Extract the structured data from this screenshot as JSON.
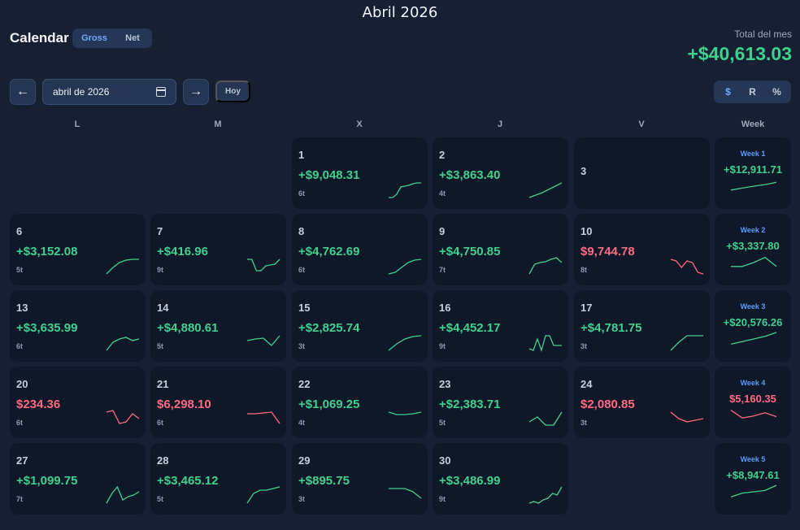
{
  "page_title": "Abril 2026",
  "header": {
    "title": "Calendar",
    "mode_options": [
      "Gross",
      "Net"
    ],
    "active_mode": "Gross",
    "total_label": "Total del mes",
    "total_value": "+$40,613.03"
  },
  "controls": {
    "prev_label": "←",
    "next_label": "→",
    "date_value": "abril de 2026",
    "today_label": "Hoy",
    "unit_options": [
      "$",
      "R",
      "%"
    ],
    "active_unit": "$"
  },
  "colors": {
    "positive": "#43d08f",
    "negative": "#ff6b81",
    "accent": "#5d9cf5"
  },
  "weekdays": [
    "L",
    "M",
    "X",
    "J",
    "V",
    "Week"
  ],
  "weeks": [
    {
      "label": "Week 1",
      "value": "+$12,911.71",
      "sign": "pos",
      "spark": [
        0.2,
        0.35,
        0.5,
        0.62,
        0.8
      ],
      "days": [
        null,
        null,
        {
          "day": "1",
          "value": "+$9,048.31",
          "trades": "6t",
          "sign": "pos",
          "spark": [
            0.0,
            0.0,
            0.2,
            0.65,
            0.7,
            0.75,
            0.85,
            0.9,
            0.9
          ]
        },
        {
          "day": "2",
          "value": "+$3,863.40",
          "trades": "4t",
          "sign": "pos",
          "spark": [
            0.0,
            0.15,
            0.3,
            0.5,
            0.7,
            0.9
          ]
        },
        {
          "day": "3",
          "value": "",
          "trades": "",
          "sign": "none",
          "spark": []
        }
      ]
    },
    {
      "label": "Week 2",
      "value": "+$3,337.80",
      "sign": "pos",
      "spark": [
        0.2,
        0.2,
        0.5,
        0.9,
        0.2
      ],
      "days": [
        {
          "day": "6",
          "value": "+$3,152.08",
          "trades": "5t",
          "sign": "pos",
          "spark": [
            0.0,
            0.4,
            0.7,
            0.85,
            0.9,
            0.9
          ]
        },
        {
          "day": "7",
          "value": "+$416.96",
          "trades": "9t",
          "sign": "pos",
          "spark": [
            0.9,
            0.9,
            0.2,
            0.2,
            0.5,
            0.55,
            0.6,
            0.9
          ]
        },
        {
          "day": "8",
          "value": "+$4,762.69",
          "trades": "6t",
          "sign": "pos",
          "spark": [
            0.0,
            0.1,
            0.4,
            0.7,
            0.85,
            0.9
          ]
        },
        {
          "day": "9",
          "value": "+$4,750.85",
          "trades": "7t",
          "sign": "pos",
          "spark": [
            0.0,
            0.6,
            0.7,
            0.75,
            0.9,
            1.0,
            0.7
          ]
        },
        {
          "day": "10",
          "value": "$9,744.78",
          "trades": "8t",
          "sign": "neg",
          "spark": [
            0.9,
            0.8,
            0.4,
            0.8,
            0.7,
            0.1,
            0.0
          ]
        }
      ]
    },
    {
      "label": "Week 3",
      "value": "+$20,576.26",
      "sign": "pos",
      "spark": [
        0.1,
        0.3,
        0.5,
        0.7,
        1.0
      ],
      "days": [
        {
          "day": "13",
          "value": "+$3,635.99",
          "trades": "6t",
          "sign": "pos",
          "spark": [
            0.0,
            0.5,
            0.7,
            0.8,
            0.6,
            0.7
          ]
        },
        {
          "day": "14",
          "value": "+$4,880.61",
          "trades": "5t",
          "sign": "pos",
          "spark": [
            0.6,
            0.7,
            0.75,
            0.3,
            0.9
          ]
        },
        {
          "day": "15",
          "value": "+$2,825.74",
          "trades": "3t",
          "sign": "pos",
          "spark": [
            0.0,
            0.4,
            0.7,
            0.85,
            0.9
          ]
        },
        {
          "day": "16",
          "value": "+$4,452.17",
          "trades": "9t",
          "sign": "pos",
          "spark": [
            0.1,
            0.0,
            0.7,
            0.0,
            0.9,
            0.9,
            0.3,
            0.3,
            0.3
          ]
        },
        {
          "day": "17",
          "value": "+$4,781.75",
          "trades": "3t",
          "sign": "pos",
          "spark": [
            0.0,
            0.5,
            0.9,
            0.9,
            0.9
          ]
        }
      ]
    },
    {
      "label": "Week 4",
      "value": "$5,160.35",
      "sign": "neg",
      "spark": [
        0.9,
        0.3,
        0.45,
        0.7,
        0.4
      ],
      "days": [
        {
          "day": "20",
          "value": "$234.36",
          "trades": "6t",
          "sign": "neg",
          "spark": [
            0.9,
            1.0,
            0.2,
            0.3,
            0.8,
            0.5
          ]
        },
        {
          "day": "21",
          "value": "$6,298.10",
          "trades": "6t",
          "sign": "neg",
          "spark": [
            0.8,
            0.8,
            0.85,
            0.9,
            0.2
          ]
        },
        {
          "day": "22",
          "value": "+$1,069.25",
          "trades": "4t",
          "sign": "pos",
          "spark": [
            0.9,
            0.75,
            0.75,
            0.8,
            0.9
          ]
        },
        {
          "day": "23",
          "value": "+$2,383.71",
          "trades": "5t",
          "sign": "pos",
          "spark": [
            0.3,
            0.6,
            0.1,
            0.1,
            0.9
          ]
        },
        {
          "day": "24",
          "value": "$2,080.85",
          "trades": "3t",
          "sign": "neg",
          "spark": [
            0.9,
            0.5,
            0.3,
            0.4,
            0.5
          ]
        }
      ]
    },
    {
      "label": "Week 5",
      "value": "+$8,947.61",
      "sign": "pos",
      "spark": [
        0.1,
        0.4,
        0.5,
        0.6,
        1.0
      ],
      "days": [
        {
          "day": "27",
          "value": "+$1,099.75",
          "trades": "7t",
          "sign": "pos",
          "spark": [
            0.0,
            0.6,
            1.0,
            0.2,
            0.4,
            0.5,
            0.7
          ]
        },
        {
          "day": "28",
          "value": "+$3,465.12",
          "trades": "5t",
          "sign": "pos",
          "spark": [
            0.0,
            0.6,
            0.8,
            0.8,
            0.9,
            1.0
          ]
        },
        {
          "day": "29",
          "value": "+$895.75",
          "trades": "3t",
          "sign": "pos",
          "spark": [
            0.9,
            0.9,
            0.9,
            0.7,
            0.3
          ]
        },
        {
          "day": "30",
          "value": "+$3,486.99",
          "trades": "9t",
          "sign": "pos",
          "spark": [
            0.0,
            0.1,
            0.0,
            0.2,
            0.3,
            0.6,
            0.5,
            1.0
          ]
        },
        null
      ]
    }
  ]
}
